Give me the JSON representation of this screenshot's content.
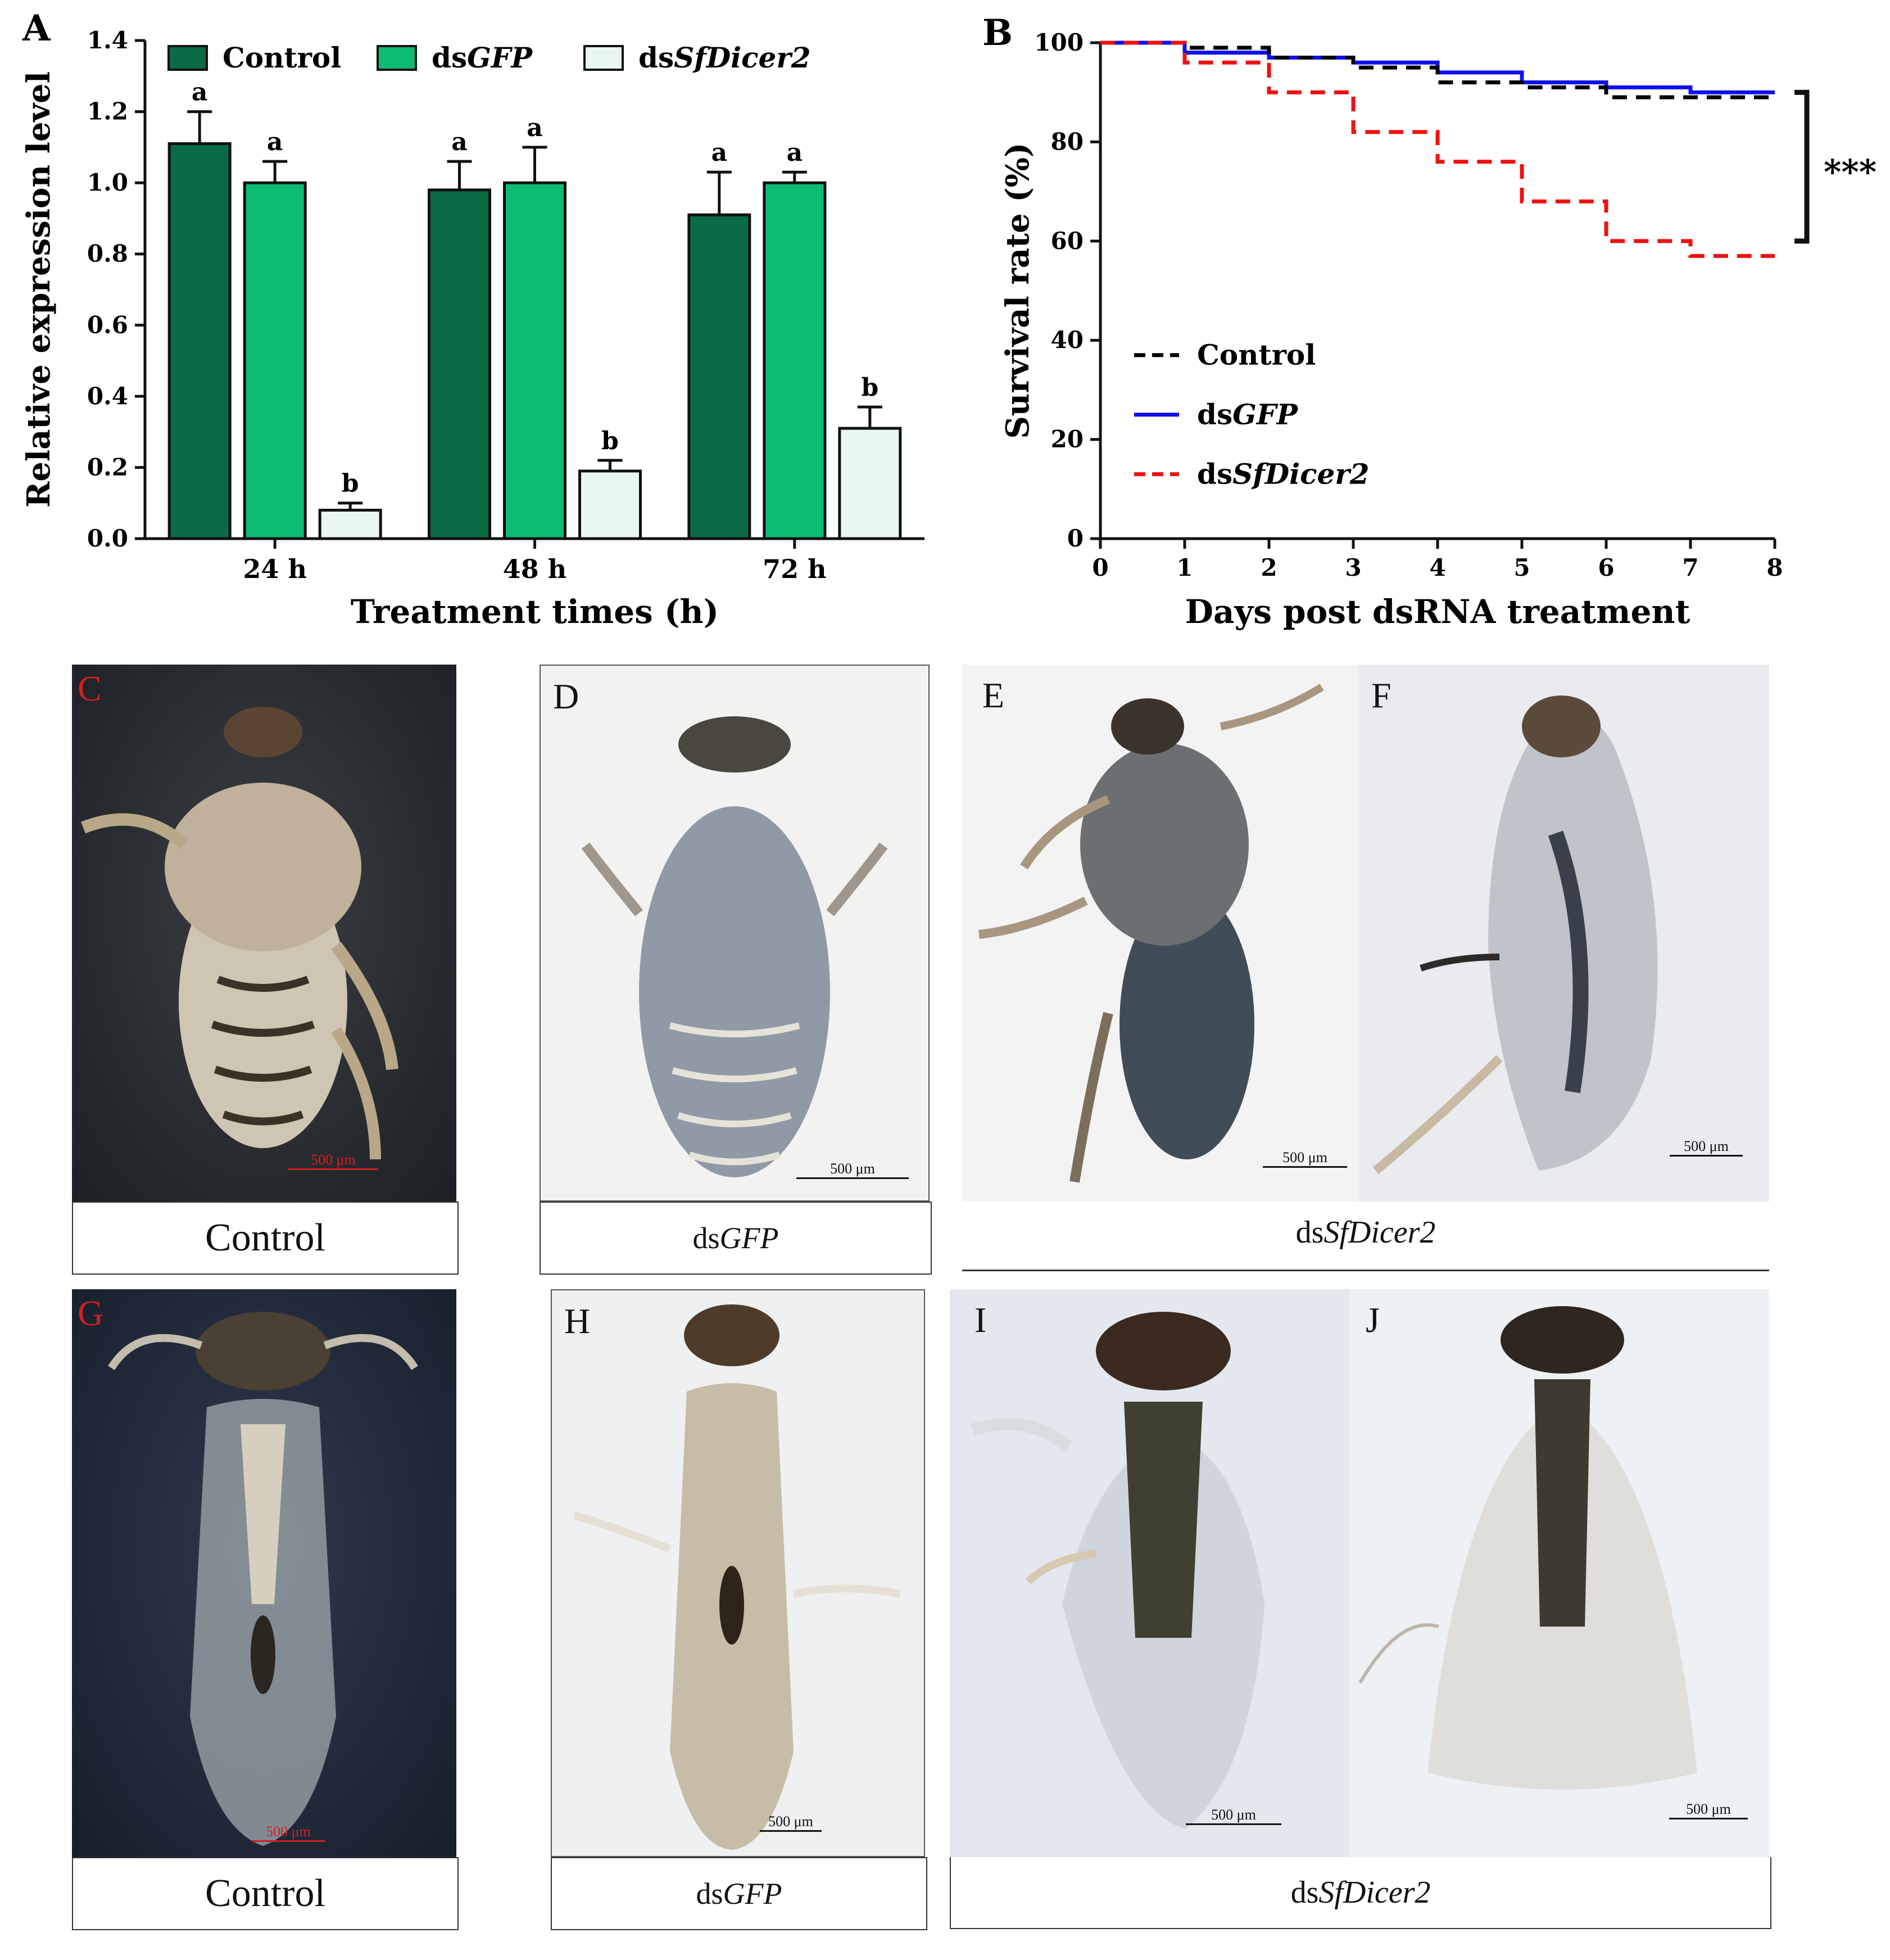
{
  "panels": {
    "A": "A",
    "B": "B",
    "C": "C",
    "D": "D",
    "E": "E",
    "F": "F",
    "G": "G",
    "H": "H",
    "I": "I",
    "J": "J"
  },
  "captions": {
    "control": "Control",
    "gfp_prefix": "ds",
    "gfp_italic": "GFP",
    "dicer_prefix": "ds",
    "dicer_italic": "SfDicer2"
  },
  "scale_label": "500 μm",
  "colors": {
    "control_bar": "#0b6b45",
    "gfp_bar": "#0bbd72",
    "dicer_bar": "#e8f8f0",
    "surv_control": "#000000",
    "surv_gfp": "#1010ee",
    "surv_dicer": "#ee1111",
    "panel_label_red": "#d02020"
  },
  "chart_data": [
    {
      "type": "bar",
      "title": "",
      "xlabel": "Treatment times (h)",
      "ylabel": "Relative expression level",
      "categories": [
        "24 h",
        "48 h",
        "72 h"
      ],
      "ylim": [
        0,
        1.4
      ],
      "yticks": [
        "0.0",
        "0.2",
        "0.4",
        "0.6",
        "0.8",
        "1.0",
        "1.2",
        "1.4"
      ],
      "legend": {
        "placement": "top",
        "entries": [
          {
            "prefix": "",
            "italic": "",
            "plain": "Control"
          },
          {
            "prefix": "ds",
            "italic": "GFP",
            "plain": ""
          },
          {
            "prefix": "ds",
            "italic": "SfDicer2",
            "plain": ""
          }
        ]
      },
      "series": [
        {
          "name": "Control",
          "values": [
            1.11,
            0.98,
            0.91
          ],
          "errors": [
            0.09,
            0.08,
            0.12
          ],
          "letters": [
            "a",
            "a",
            "a"
          ]
        },
        {
          "name": "dsGFP",
          "values": [
            1.0,
            1.0,
            1.0
          ],
          "errors": [
            0.06,
            0.1,
            0.03
          ],
          "letters": [
            "a",
            "a",
            "a"
          ]
        },
        {
          "name": "dsSfDicer2",
          "values": [
            0.08,
            0.19,
            0.31
          ],
          "errors": [
            0.02,
            0.03,
            0.06
          ],
          "letters": [
            "b",
            "b",
            "b"
          ]
        }
      ]
    },
    {
      "type": "line",
      "title": "",
      "xlabel": "Days post dsRNA treatment",
      "ylabel": "Survival rate (%)",
      "xlim": [
        0,
        8
      ],
      "ylim": [
        0,
        100
      ],
      "xticks": [
        "0",
        "1",
        "2",
        "3",
        "4",
        "5",
        "6",
        "7",
        "8"
      ],
      "yticks": [
        "0",
        "20",
        "40",
        "60",
        "80",
        "100"
      ],
      "significance": "***",
      "legend": {
        "placement": "middle-left"
      },
      "series": [
        {
          "name": "Control",
          "prefix": "",
          "italic": "",
          "plain": "Control",
          "style": "dashed",
          "steps": [
            [
              0,
              100
            ],
            [
              1,
              99
            ],
            [
              2,
              97
            ],
            [
              3,
              95
            ],
            [
              4,
              92
            ],
            [
              5,
              91
            ],
            [
              6,
              89
            ],
            [
              7,
              89
            ],
            [
              8,
              89
            ]
          ]
        },
        {
          "name": "dsGFP",
          "prefix": "ds",
          "italic": "GFP",
          "plain": "",
          "style": "solid",
          "steps": [
            [
              0,
              100
            ],
            [
              1,
              98
            ],
            [
              2,
              97
            ],
            [
              3,
              96
            ],
            [
              4,
              94
            ],
            [
              5,
              92
            ],
            [
              6,
              91
            ],
            [
              7,
              90
            ],
            [
              8,
              90
            ]
          ]
        },
        {
          "name": "dsSfDicer2",
          "prefix": "ds",
          "italic": "SfDicer2",
          "plain": "",
          "style": "dashed",
          "steps": [
            [
              0,
              100
            ],
            [
              1,
              96
            ],
            [
              2,
              90
            ],
            [
              3,
              82
            ],
            [
              4,
              76
            ],
            [
              5,
              68
            ],
            [
              6,
              60
            ],
            [
              7,
              57
            ],
            [
              8,
              57
            ]
          ]
        }
      ]
    }
  ]
}
